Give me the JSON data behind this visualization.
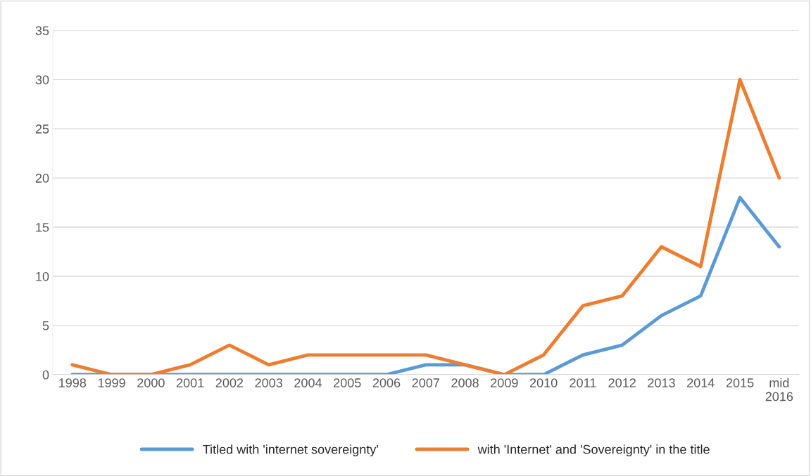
{
  "chart_data": {
    "type": "line",
    "categories": [
      "1998",
      "1999",
      "2000",
      "2001",
      "2002",
      "2003",
      "2004",
      "2005",
      "2006",
      "2007",
      "2008",
      "2009",
      "2010",
      "2011",
      "2012",
      "2013",
      "2014",
      "2015",
      "mid\n2016"
    ],
    "series": [
      {
        "name": "Titled with 'internet sovereignty'",
        "color": "#5b9bd5",
        "values": [
          0,
          0,
          0,
          0,
          0,
          0,
          0,
          0,
          0,
          1,
          1,
          0,
          0,
          2,
          3,
          6,
          8,
          18,
          13
        ]
      },
      {
        "name": "with 'Internet' and 'Sovereignty' in the title",
        "color": "#ed7d31",
        "values": [
          1,
          0,
          0,
          1,
          3,
          1,
          2,
          2,
          2,
          2,
          1,
          0,
          2,
          7,
          8,
          13,
          11,
          30,
          20
        ]
      }
    ],
    "ylim": [
      0,
      35
    ],
    "yticks": [
      0,
      5,
      10,
      15,
      20,
      25,
      30,
      35
    ],
    "grid": "y",
    "legend": "bottom",
    "marker": "none",
    "line_style": "solid"
  }
}
